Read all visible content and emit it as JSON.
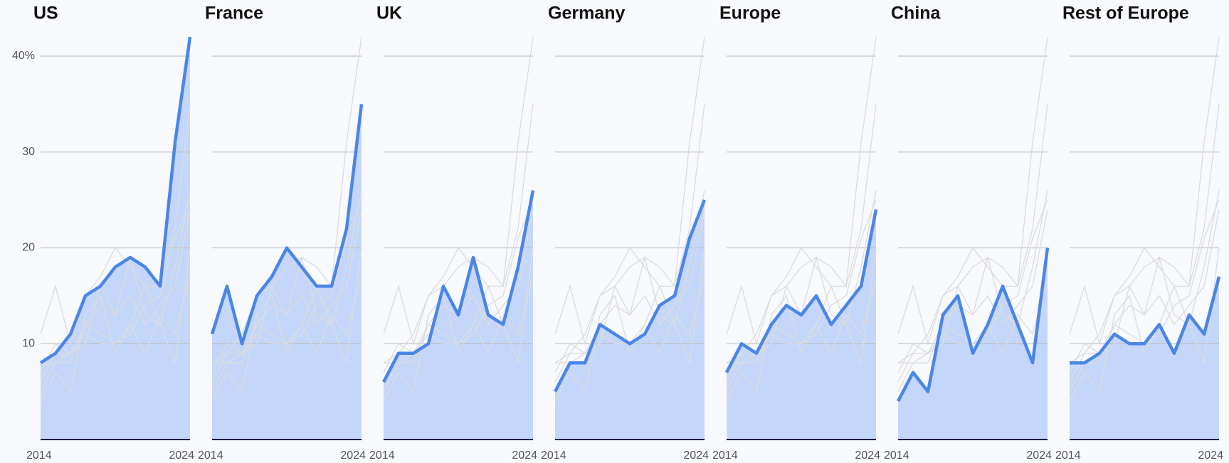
{
  "chart_data": {
    "type": "line",
    "x": [
      2014,
      2015,
      2016,
      2017,
      2018,
      2019,
      2020,
      2021,
      2022,
      2023,
      2024
    ],
    "xlim": [
      2014,
      2024
    ],
    "xticks": [
      2014,
      2024
    ],
    "ylim": [
      0,
      42
    ],
    "yticks": [
      10,
      20,
      30,
      {
        "value": 40,
        "label": "40%"
      }
    ],
    "grid": true,
    "color": "#4a86e8",
    "fill_color": "#c4d7fa",
    "other_color": "#dcdce0",
    "series": [
      {
        "name": "US",
        "values": [
          8,
          9,
          11,
          15,
          16,
          18,
          19,
          18,
          16,
          31,
          42
        ]
      },
      {
        "name": "France",
        "values": [
          11,
          16,
          10,
          15,
          17,
          20,
          18,
          16,
          16,
          22,
          35
        ]
      },
      {
        "name": "UK",
        "values": [
          6,
          9,
          9,
          10,
          16,
          13,
          19,
          13,
          12,
          18,
          26
        ]
      },
      {
        "name": "Germany",
        "values": [
          5,
          8,
          8,
          12,
          11,
          10,
          11,
          14,
          15,
          21,
          25
        ]
      },
      {
        "name": "Europe",
        "values": [
          7,
          10,
          9,
          12,
          14,
          13,
          15,
          12,
          14,
          16,
          24
        ]
      },
      {
        "name": "China",
        "values": [
          4,
          7,
          5,
          13,
          15,
          9,
          12,
          16,
          12,
          8,
          20
        ]
      },
      {
        "name": "Rest of Europe",
        "values": [
          8,
          8,
          9,
          11,
          10,
          10,
          12,
          9,
          13,
          11,
          17
        ]
      }
    ]
  }
}
